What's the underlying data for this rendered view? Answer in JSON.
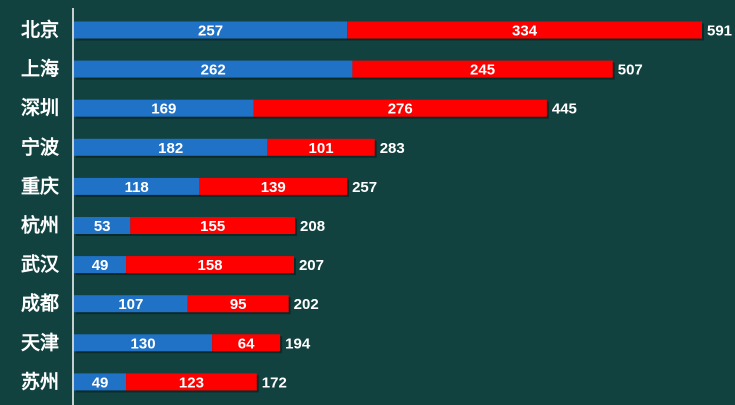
{
  "chart_data": {
    "type": "bar",
    "orientation": "horizontal",
    "stacked": true,
    "categories": [
      "北京",
      "上海",
      "深圳",
      "宁波",
      "重庆",
      "杭州",
      "武汉",
      "成都",
      "天津",
      "苏州"
    ],
    "series": [
      {
        "values": [
          257,
          262,
          169,
          182,
          118,
          53,
          49,
          107,
          130,
          49
        ]
      },
      {
        "values": [
          334,
          245,
          276,
          101,
          139,
          155,
          158,
          95,
          64,
          123
        ]
      }
    ],
    "totals": [
      591,
      507,
      445,
      283,
      257,
      208,
      207,
      202,
      194,
      172
    ],
    "xlim": [
      0,
      591
    ],
    "grid": false,
    "legend": "none"
  },
  "colors": {
    "background": "#11423f",
    "series": [
      "#1f72c6",
      "#ff0000"
    ],
    "text": "#ffffff",
    "axis": "#ffffff"
  }
}
